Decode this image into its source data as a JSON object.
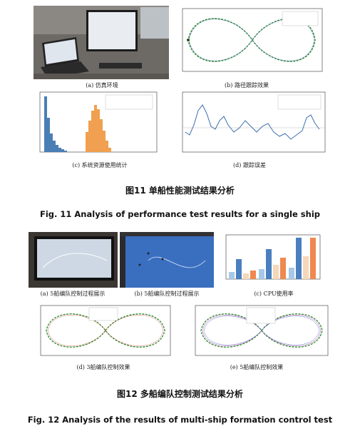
{
  "figures": [
    {
      "subfigures": [
        {
          "caption": "(a) 仿真环境"
        },
        {
          "caption": "(b) 路径跟踪效果"
        },
        {
          "caption": "(c) 系统资源使用统计"
        },
        {
          "caption": "(d) 跟踪误差"
        }
      ],
      "caption_zh": "图11 单船性能测试结果分析",
      "caption_en": "Fig. 11 Analysis of performance test results for a single ship"
    },
    {
      "subfigures": [
        {
          "caption": "(a) 5船编队控制过程展示"
        },
        {
          "caption": "(b) 5船编队控制过程展示"
        },
        {
          "caption": "(c) CPU使用率"
        },
        {
          "caption": "(d) 3船编队控制效果"
        },
        {
          "caption": "(e) 5船编队控制效果"
        }
      ],
      "caption_zh": "图12 多船编队控制测试结果分析",
      "caption_en": "Fig. 12 Analysis of the results of multi-ship formation control test"
    }
  ]
}
